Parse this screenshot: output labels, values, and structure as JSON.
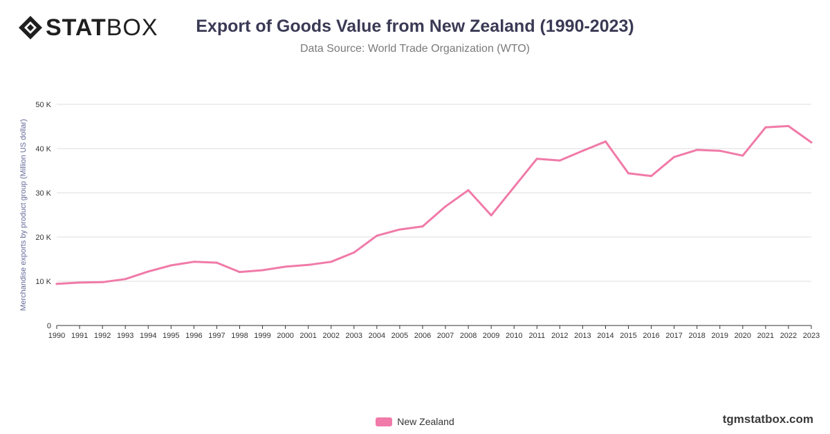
{
  "header": {
    "logo_text_bold": "STAT",
    "logo_text_light": "BOX",
    "title": "Export of Goods Value from New Zealand (1990-2023)",
    "subtitle": "Data Source: World Trade Organization (WTO)"
  },
  "footer": {
    "legend_label": "New Zealand",
    "watermark": "tgmstatbox.com"
  },
  "colors": {
    "series": "#f07aa8",
    "grid": "#dddddd",
    "axis": "#333333",
    "title": "#3a3a55"
  },
  "chart_data": {
    "type": "line",
    "title": "Export of Goods Value from New Zealand (1990-2023)",
    "subtitle": "Data Source: World Trade Organization (WTO)",
    "xlabel": "",
    "ylabel": "Merchandise exports by product group (Million US dollar)",
    "ylim": [
      0,
      50000
    ],
    "yticks": [
      0,
      10000,
      20000,
      30000,
      40000,
      50000
    ],
    "ytick_labels": [
      "0",
      "10 K",
      "20 K",
      "30 K",
      "40 K",
      "50 K"
    ],
    "grid": true,
    "legend": "bottom-center",
    "x": [
      "1990",
      "1991",
      "1992",
      "1993",
      "1994",
      "1995",
      "1996",
      "1997",
      "1998",
      "1999",
      "2000",
      "2001",
      "2002",
      "2003",
      "2004",
      "2005",
      "2006",
      "2007",
      "2008",
      "2009",
      "2010",
      "2011",
      "2012",
      "2013",
      "2014",
      "2015",
      "2016",
      "2017",
      "2018",
      "2019",
      "2020",
      "2021",
      "2022",
      "2023"
    ],
    "series": [
      {
        "name": "New Zealand",
        "values": [
          9400,
          9700,
          9800,
          10500,
          12200,
          13600,
          14400,
          14200,
          12100,
          12500,
          13300,
          13700,
          14400,
          16500,
          20300,
          21700,
          22400,
          26900,
          30600,
          24900,
          31300,
          37700,
          37300,
          39500,
          41600,
          34400,
          33800,
          38100,
          39700,
          39500,
          38400,
          44800,
          45100,
          41400
        ]
      }
    ]
  }
}
